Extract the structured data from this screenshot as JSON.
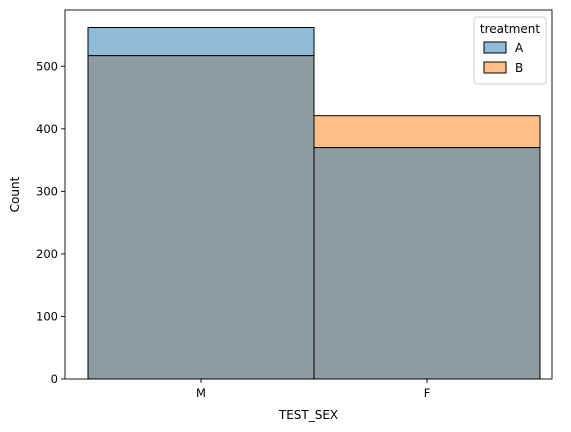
{
  "chart_data": {
    "type": "bar",
    "overlay": true,
    "categories": [
      "M",
      "F"
    ],
    "series": [
      {
        "name": "A",
        "values": [
          562,
          370
        ],
        "color": "#1f77b4"
      },
      {
        "name": "B",
        "values": [
          517,
          421
        ],
        "color": "#ff7f0e"
      }
    ],
    "overlap_color": "#8e9ca1",
    "xlabel": "TEST_SEX",
    "ylabel": "Count",
    "ylim": [
      0,
      590
    ],
    "yticks": [
      0,
      100,
      200,
      300,
      400,
      500
    ],
    "legend": {
      "title": "treatment",
      "placement": "top-right"
    },
    "grid": false
  }
}
